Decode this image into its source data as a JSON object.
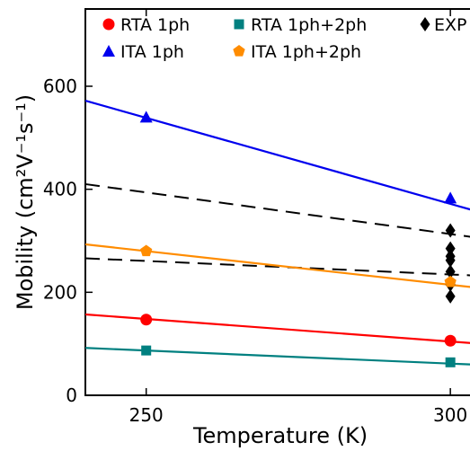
{
  "chart_data": {
    "type": "line",
    "xlabel": "Temperature (K)",
    "ylabel": "Mobility (cm²V⁻¹s⁻¹)",
    "xlim": [
      240,
      305
    ],
    "ylim": [
      0,
      750
    ],
    "xticks": [
      250,
      300
    ],
    "yticks": [
      0,
      200,
      400,
      600
    ],
    "grid": false,
    "legend_position": "top",
    "series": [
      {
        "name": "RTA 1ph",
        "color": "#ff0000",
        "marker": "circle",
        "points": [
          [
            250,
            147
          ],
          [
            300,
            106
          ]
        ],
        "line": [
          [
            240,
            157
          ],
          [
            305,
            100
          ]
        ]
      },
      {
        "name": "RTA 1ph+2ph",
        "color": "#008080",
        "marker": "square",
        "points": [
          [
            250,
            87
          ],
          [
            300,
            64
          ]
        ],
        "line": [
          [
            240,
            92
          ],
          [
            305,
            59
          ]
        ]
      },
      {
        "name": "EXP",
        "color": "#000000",
        "marker": "diamond",
        "points": [
          [
            300,
            320
          ],
          [
            300,
            285
          ],
          [
            300,
            270
          ],
          [
            300,
            262
          ],
          [
            300,
            240
          ],
          [
            300,
            215
          ],
          [
            300,
            192
          ]
        ]
      },
      {
        "name": "ITA 1ph",
        "color": "#0000ee",
        "marker": "triangle",
        "points": [
          [
            250,
            540
          ],
          [
            300,
            383
          ]
        ],
        "line": [
          [
            240,
            572
          ],
          [
            305,
            355
          ]
        ]
      },
      {
        "name": "ITA 1ph+2ph",
        "color": "#ff8c00",
        "marker": "pentagon",
        "points": [
          [
            250,
            280
          ],
          [
            300,
            220
          ]
        ],
        "line": [
          [
            240,
            293
          ],
          [
            305,
            208
          ]
        ]
      }
    ],
    "dashed_lines": [
      {
        "color": "#000000",
        "line": [
          [
            240,
            410
          ],
          [
            305,
            305
          ]
        ]
      },
      {
        "color": "#000000",
        "line": [
          [
            240,
            266
          ],
          [
            305,
            232
          ]
        ]
      }
    ]
  }
}
